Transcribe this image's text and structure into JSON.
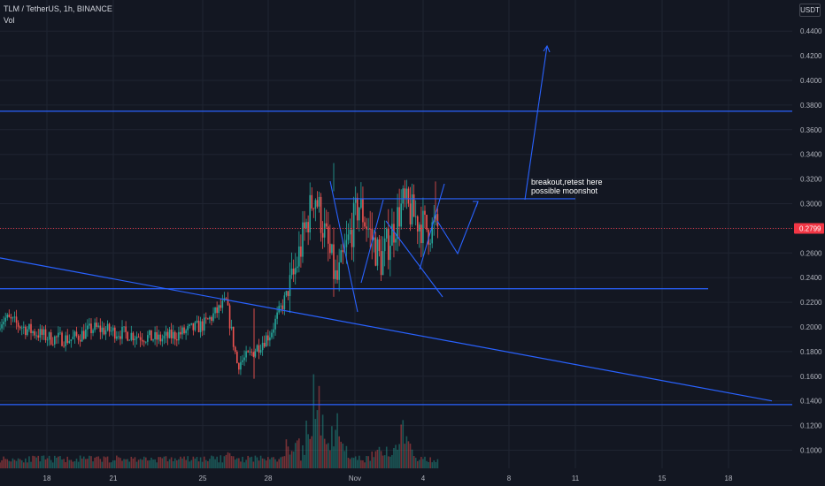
{
  "header": {
    "symbol_line": "TLM / TetherUS, 1h, BINANCE",
    "volume_label": "Vol"
  },
  "currency_badge": "USDT",
  "annotation": {
    "line1": "breakout,retest here",
    "line2": "possible moonshot"
  },
  "colors": {
    "background": "#131722",
    "up": "#26a69a",
    "down": "#ef5350",
    "drawing": "#2962ff",
    "last_price_badge": "#f23645"
  },
  "chart_data": {
    "type": "candlestick",
    "symbol": "TLM / TetherUS",
    "interval": "1h",
    "exchange": "BINANCE",
    "x_tick_labels": [
      "18",
      "21",
      "25",
      "28",
      "Nov",
      "4",
      "8",
      "11",
      "15",
      "18"
    ],
    "y_tick_labels": [
      "0.4400",
      "0.4200",
      "0.4000",
      "0.3800",
      "0.3600",
      "0.3400",
      "0.3200",
      "0.3000",
      "0.2800",
      "0.2600",
      "0.2400",
      "0.2200",
      "0.2000",
      "0.1800",
      "0.1600",
      "0.1400",
      "0.1200",
      "0.1000"
    ],
    "y_range": [
      0.092,
      0.458
    ],
    "last_price": "0.2799",
    "price_path_approx": [
      {
        "date": "Oct 16",
        "close": 0.198
      },
      {
        "date": "Oct 17",
        "close": 0.207
      },
      {
        "date": "Oct 18",
        "close": 0.198
      },
      {
        "date": "Oct 19",
        "close": 0.191
      },
      {
        "date": "Oct 20",
        "close": 0.19
      },
      {
        "date": "Oct 21",
        "close": 0.199
      },
      {
        "date": "Oct 22",
        "close": 0.196
      },
      {
        "date": "Oct 23",
        "close": 0.193
      },
      {
        "date": "Oct 24",
        "close": 0.19
      },
      {
        "date": "Oct 25",
        "close": 0.195
      },
      {
        "date": "Oct 26",
        "close": 0.202
      },
      {
        "date": "Oct 27",
        "close": 0.22
      },
      {
        "date": "Oct 27 (drop)",
        "close": 0.17
      },
      {
        "date": "Oct 28",
        "close": 0.176
      },
      {
        "date": "Oct 29",
        "close": 0.195
      },
      {
        "date": "Oct 30",
        "close": 0.237
      },
      {
        "date": "Oct 31",
        "close": 0.31
      },
      {
        "date": "Nov 1",
        "close": 0.235
      },
      {
        "date": "Nov 2",
        "close": 0.3
      },
      {
        "date": "Nov 3",
        "close": 0.253
      },
      {
        "date": "Nov 4",
        "close": 0.3
      },
      {
        "date": "Nov 5",
        "close": 0.28
      }
    ],
    "volume_approx": [
      {
        "date": "Oct 27",
        "volume": 0.18
      },
      {
        "date": "Oct 30",
        "volume": 0.45
      },
      {
        "date": "Oct 31",
        "volume": 1.0
      },
      {
        "date": "Nov 1",
        "volume": 0.55
      },
      {
        "date": "Nov 3",
        "volume": 0.35
      },
      {
        "date": "Nov 4",
        "volume": 0.5
      }
    ],
    "drawings": {
      "horizontal_levels": [
        0.375,
        0.304,
        0.231,
        0.137
      ],
      "trendline": {
        "from": {
          "date": "Oct 14",
          "price": 0.256
        },
        "to": {
          "date": "Nov 17",
          "price": 0.14
        }
      }
    },
    "grid": true
  }
}
